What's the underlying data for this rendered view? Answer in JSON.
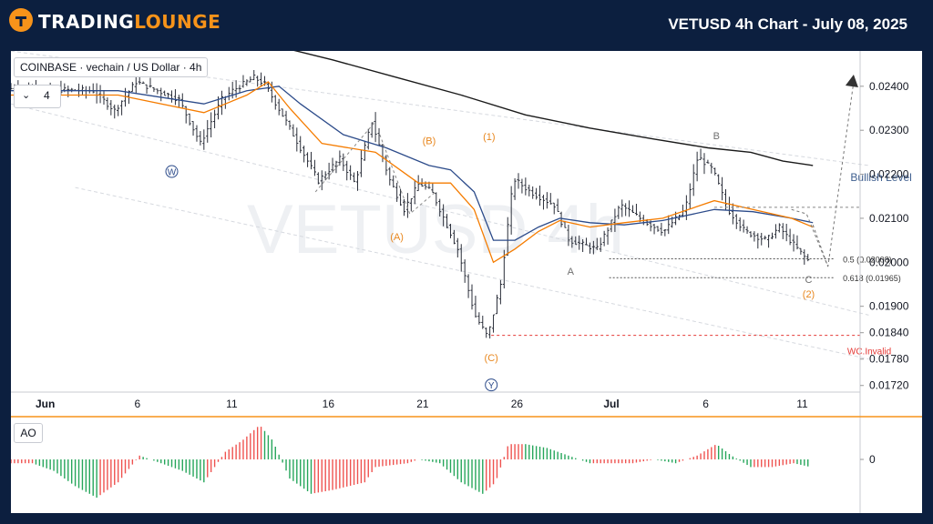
{
  "header": {
    "logo_part1": "TRADING",
    "logo_part2": "LOUNGE",
    "title": "VETUSD 4h Chart - July 08, 2025",
    "brand_color": "#f7931a",
    "background_color": "#0c1f3f"
  },
  "legend": {
    "symbol": "COINBASE · vechain / US Dollar · 4h",
    "indicator_count": "4",
    "collapse_icon": "chevron-down-icon"
  },
  "watermark": "VETUSD 4h",
  "oscillator": {
    "label": "AO",
    "zero_label": "0"
  },
  "chart_data": {
    "type": "bar",
    "title": "VETUSD 4h Chart - July 08, 2025",
    "y_ticks": [
      "0.02400",
      "0.02300",
      "0.02200",
      "0.02100",
      "0.02000",
      "0.01900",
      "0.01840",
      "0.01780",
      "0.01720"
    ],
    "x_ticks": [
      "Jun",
      "6",
      "11",
      "16",
      "21",
      "26",
      "Jul",
      "6",
      "11"
    ],
    "ylim": [
      0.01705,
      0.02472
    ],
    "price_path": [
      [
        0,
        0.02395
      ],
      [
        4,
        0.0239
      ],
      [
        5,
        0.02345
      ],
      [
        6,
        0.0241
      ],
      [
        8,
        0.0237
      ],
      [
        9,
        0.0227
      ],
      [
        10,
        0.0237
      ],
      [
        10.5,
        0.0239
      ],
      [
        11.5,
        0.0242
      ],
      [
        12,
        0.02405
      ],
      [
        13,
        0.0232
      ],
      [
        14.5,
        0.02185
      ],
      [
        15.5,
        0.02235
      ],
      [
        16.2,
        0.0218
      ],
      [
        17,
        0.0232
      ],
      [
        17.8,
        0.0219
      ],
      [
        18.5,
        0.0212
      ],
      [
        19.2,
        0.0218
      ],
      [
        19.8,
        0.0216
      ],
      [
        21,
        0.0203
      ],
      [
        21.8,
        0.0188
      ],
      [
        22.4,
        0.0183
      ],
      [
        23,
        0.0195
      ],
      [
        23.6,
        0.0219
      ],
      [
        24.4,
        0.0216
      ],
      [
        25.5,
        0.0213
      ],
      [
        26.2,
        0.0205
      ],
      [
        27.5,
        0.0203
      ],
      [
        28.6,
        0.0213
      ],
      [
        29.8,
        0.0209
      ],
      [
        30.6,
        0.0207
      ],
      [
        31.6,
        0.0212
      ],
      [
        32.2,
        0.0224
      ],
      [
        32.9,
        0.0221
      ],
      [
        33.6,
        0.0212
      ],
      [
        34.4,
        0.0207
      ],
      [
        35.4,
        0.0205
      ],
      [
        36,
        0.0208
      ],
      [
        36.5,
        0.0205
      ],
      [
        37.3,
        0.02005
      ]
    ],
    "ema_fast": [
      [
        0,
        0.0238
      ],
      [
        5,
        0.0238
      ],
      [
        9,
        0.0234
      ],
      [
        11,
        0.0238
      ],
      [
        12,
        0.0241
      ],
      [
        13,
        0.0235
      ],
      [
        14.5,
        0.0227
      ],
      [
        17,
        0.0225
      ],
      [
        19,
        0.0218
      ],
      [
        20.5,
        0.0218
      ],
      [
        21.6,
        0.0212
      ],
      [
        22.5,
        0.02
      ],
      [
        23.5,
        0.0203
      ],
      [
        24.6,
        0.0207
      ],
      [
        25.6,
        0.02095
      ],
      [
        27,
        0.0208
      ],
      [
        28.6,
        0.0209
      ],
      [
        30.4,
        0.021
      ],
      [
        32.8,
        0.0214
      ],
      [
        34.6,
        0.0212
      ],
      [
        36.4,
        0.021
      ],
      [
        37.4,
        0.0208
      ]
    ],
    "ema_slow": [
      [
        0,
        0.0239
      ],
      [
        5,
        0.0239
      ],
      [
        9,
        0.0236
      ],
      [
        11,
        0.0239
      ],
      [
        12.5,
        0.024
      ],
      [
        13.5,
        0.0236
      ],
      [
        15.5,
        0.0229
      ],
      [
        17.5,
        0.0226
      ],
      [
        19.5,
        0.0222
      ],
      [
        20.5,
        0.0221
      ],
      [
        21.6,
        0.0216
      ],
      [
        22.5,
        0.0205
      ],
      [
        23.5,
        0.0205
      ],
      [
        24.6,
        0.0208
      ],
      [
        25.6,
        0.021
      ],
      [
        27,
        0.0209
      ],
      [
        28.6,
        0.02085
      ],
      [
        30.4,
        0.02095
      ],
      [
        32.8,
        0.0212
      ],
      [
        34.6,
        0.02115
      ],
      [
        36.4,
        0.021
      ],
      [
        37.4,
        0.0209
      ]
    ],
    "ma_200": [
      [
        12.5,
        0.0249
      ],
      [
        15,
        0.0246
      ],
      [
        18,
        0.0242
      ],
      [
        21,
        0.0238
      ],
      [
        24,
        0.02335
      ],
      [
        27,
        0.02305
      ],
      [
        30,
        0.0228
      ],
      [
        32.5,
        0.0226
      ],
      [
        34.5,
        0.0225
      ],
      [
        36,
        0.0223
      ],
      [
        37.4,
        0.0222
      ]
    ],
    "projection": [
      [
        37.4,
        0.02085
      ],
      [
        38.1,
        0.0199
      ],
      [
        39.3,
        0.0241
      ]
    ],
    "c_leg": [
      [
        36.4,
        0.0212
      ],
      [
        37.1,
        0.0211
      ],
      [
        38.1,
        0.0199
      ]
    ],
    "fib_levels": [
      {
        "label": "0.5 (0.02008)",
        "value": 0.02008
      },
      {
        "label": "0.618 (0.01965)",
        "value": 0.01965
      }
    ],
    "bullish_level": {
      "label": "Bullish Level",
      "value": 0.02125
    },
    "invalidation": {
      "label": "WC.Invalid",
      "value": 0.01834
    },
    "wave_labels": [
      {
        "text": "W",
        "circled": true,
        "color": "#2c4b8a",
        "x": 7.5,
        "y": 0.02198
      },
      {
        "text": "(A)",
        "color": "#e8871e",
        "x": 18.0,
        "y": 0.0205
      },
      {
        "text": "(B)",
        "color": "#e8871e",
        "x": 19.5,
        "y": 0.02268
      },
      {
        "text": "(1)",
        "color": "#e8871e",
        "x": 22.3,
        "y": 0.02278
      },
      {
        "text": "(C)",
        "color": "#e8871e",
        "x": 22.4,
        "y": 0.01775
      },
      {
        "text": "Y",
        "circled": true,
        "color": "#2c4b8a",
        "x": 22.4,
        "y": 0.01713
      },
      {
        "text": "A",
        "color": "#707070",
        "x": 26.1,
        "y": 0.01972
      },
      {
        "text": "B",
        "color": "#707070",
        "x": 32.9,
        "y": 0.0228
      },
      {
        "text": "C",
        "color": "#707070",
        "x": 37.2,
        "y": 0.01953
      },
      {
        "text": "(2)",
        "color": "#e8871e",
        "x": 37.2,
        "y": 0.0192
      }
    ],
    "channel": {
      "upper": [
        [
          0,
          0.0248
        ],
        [
          40,
          0.0222
        ]
      ],
      "lower": [
        [
          0,
          0.0236
        ],
        [
          40,
          0.0188
        ]
      ],
      "bottom": [
        [
          3,
          0.0217
        ],
        [
          40,
          0.0178
        ]
      ]
    },
    "colors": {
      "bars": "#2a2e39",
      "ema_fast": "#f57c00",
      "ema_slow": "#2c4b8a",
      "ma_200": "#1a1a1a",
      "invalid": "#e53935",
      "bullish": "#3f5f8f",
      "ao_up": "#ef5350",
      "ao_down": "#26a65b"
    },
    "ao_values": [
      [
        0,
        -1
      ],
      [
        1,
        -1
      ],
      [
        2,
        -3
      ],
      [
        3,
        -7
      ],
      [
        4,
        -10
      ],
      [
        5,
        -6
      ],
      [
        6,
        1
      ],
      [
        7,
        -1
      ],
      [
        8,
        -3
      ],
      [
        9,
        -6
      ],
      [
        10,
        2
      ],
      [
        10.8,
        5
      ],
      [
        11.6,
        9
      ],
      [
        12.2,
        5
      ],
      [
        13,
        -5
      ],
      [
        14,
        -9
      ],
      [
        15,
        -8
      ],
      [
        16.5,
        -6
      ],
      [
        17,
        -2
      ],
      [
        18.5,
        -1
      ],
      [
        19,
        0
      ],
      [
        20,
        -1
      ],
      [
        21,
        -6
      ],
      [
        22,
        -9
      ],
      [
        22.6,
        -6
      ],
      [
        23.2,
        4
      ],
      [
        24,
        4
      ],
      [
        25,
        3
      ],
      [
        26,
        1
      ],
      [
        27,
        -1
      ],
      [
        28,
        -1
      ],
      [
        29,
        -1
      ],
      [
        30,
        0
      ],
      [
        31,
        -1
      ],
      [
        32,
        1
      ],
      [
        32.9,
        4
      ],
      [
        33.6,
        1
      ],
      [
        34.5,
        -2
      ],
      [
        35.5,
        -2
      ],
      [
        36.5,
        -1
      ],
      [
        37.3,
        -2
      ]
    ]
  }
}
